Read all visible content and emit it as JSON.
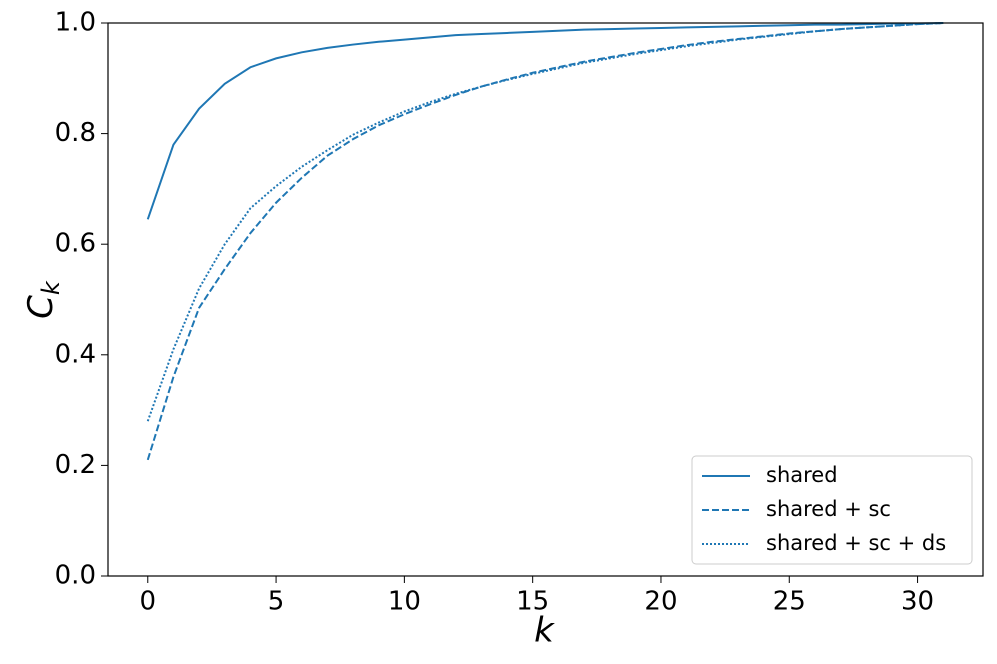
{
  "chart_data": {
    "type": "line",
    "xlabel": "k",
    "ylabel": "C",
    "ylabel_subscript": "k",
    "x": [
      0,
      1,
      2,
      3,
      4,
      5,
      6,
      7,
      8,
      9,
      10,
      11,
      12,
      13,
      14,
      15,
      16,
      17,
      18,
      19,
      20,
      21,
      22,
      23,
      24,
      25,
      26,
      27,
      28,
      29,
      30,
      31
    ],
    "series": [
      {
        "name": "shared",
        "color": "#1f77b4",
        "linestyle": "solid",
        "values": [
          0.645,
          0.78,
          0.845,
          0.89,
          0.92,
          0.936,
          0.947,
          0.955,
          0.961,
          0.966,
          0.97,
          0.974,
          0.978,
          0.98,
          0.982,
          0.984,
          0.986,
          0.988,
          0.989,
          0.99,
          0.991,
          0.992,
          0.993,
          0.994,
          0.995,
          0.996,
          0.997,
          0.997,
          0.998,
          0.999,
          0.999,
          1.0
        ]
      },
      {
        "name": "shared + sc",
        "color": "#1f77b4",
        "linestyle": "dashed",
        "values": [
          0.21,
          0.36,
          0.485,
          0.555,
          0.62,
          0.675,
          0.72,
          0.76,
          0.79,
          0.815,
          0.835,
          0.853,
          0.87,
          0.885,
          0.898,
          0.91,
          0.92,
          0.93,
          0.938,
          0.946,
          0.953,
          0.96,
          0.966,
          0.971,
          0.976,
          0.981,
          0.985,
          0.989,
          0.992,
          0.995,
          0.998,
          1.0
        ]
      },
      {
        "name": "shared + sc + ds",
        "color": "#1f77b4",
        "linestyle": "dotted",
        "values": [
          0.28,
          0.41,
          0.52,
          0.6,
          0.665,
          0.705,
          0.74,
          0.77,
          0.798,
          0.82,
          0.84,
          0.857,
          0.872,
          0.885,
          0.897,
          0.908,
          0.918,
          0.928,
          0.936,
          0.944,
          0.951,
          0.958,
          0.964,
          0.97,
          0.975,
          0.98,
          0.985,
          0.989,
          0.992,
          0.995,
          0.998,
          1.0
        ]
      }
    ],
    "xlim": [
      -1.55,
      32.55
    ],
    "xticks": [
      0,
      5,
      10,
      15,
      20,
      25,
      30
    ],
    "ylim": [
      0,
      1
    ],
    "yticks": [
      {
        "value": 0,
        "label": "0.0"
      },
      0.2,
      0.4,
      0.6,
      0.8,
      {
        "value": 1,
        "label": "1.0"
      }
    ],
    "legend": "lower right"
  }
}
